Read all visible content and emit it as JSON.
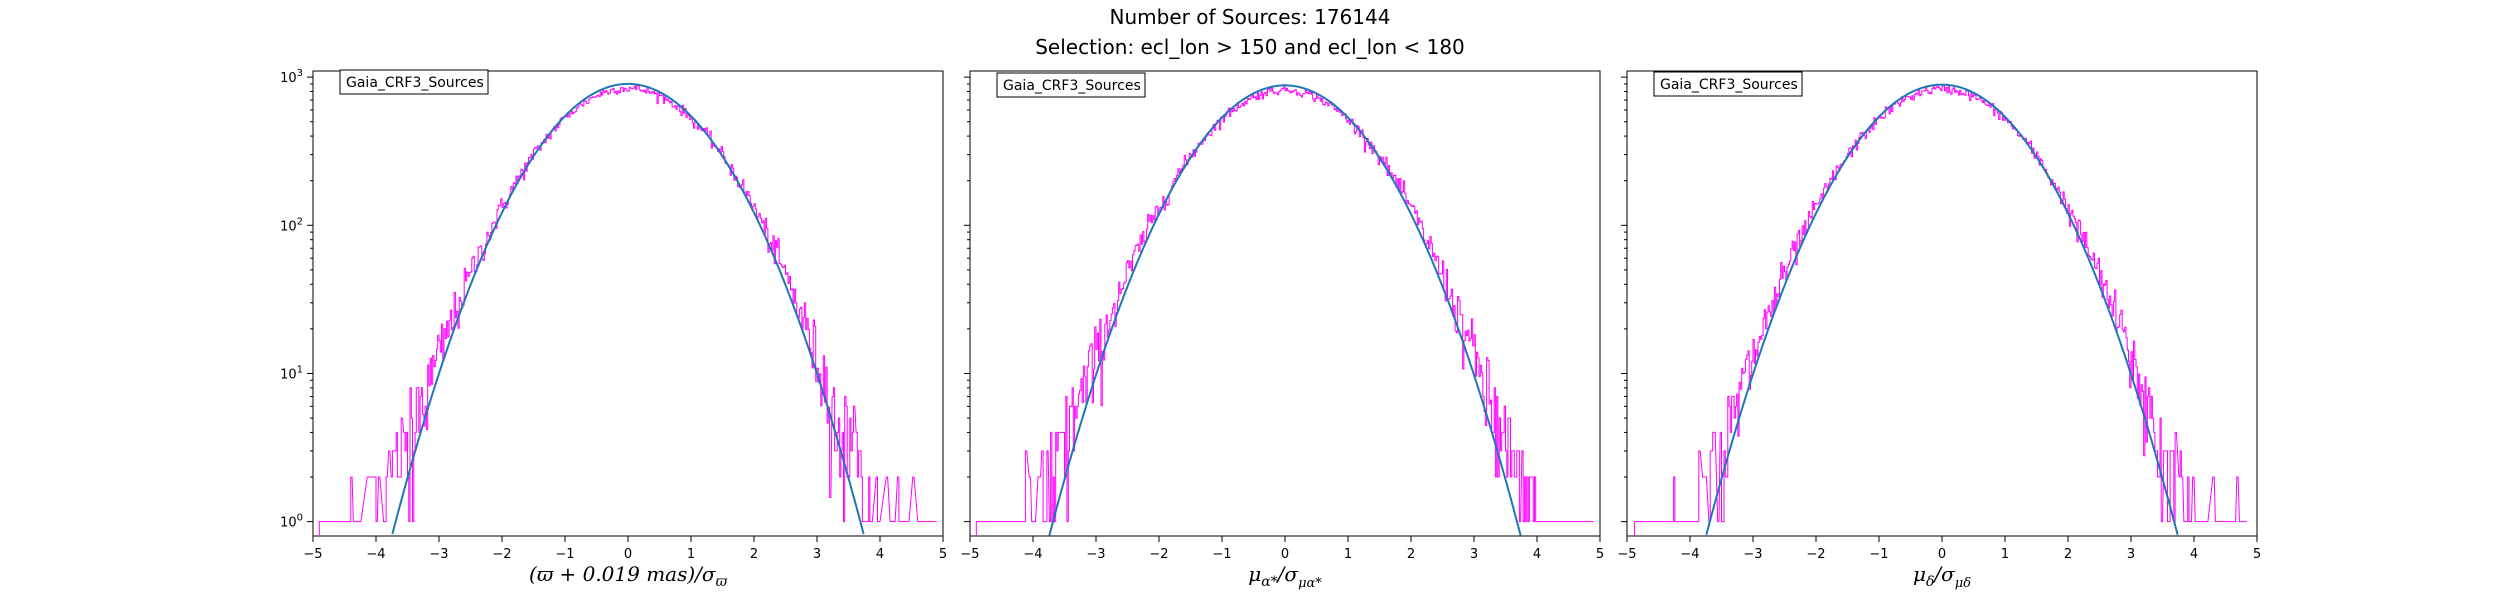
{
  "figure": {
    "title_line1": "Number of Sources: 176144",
    "title_line2": "Selection: ecl_lon > 150 and ecl_lon < 180"
  },
  "colors": {
    "histogram": "#ff00ff",
    "gaussian_fit": "#1f77b4",
    "axes": "#000000"
  },
  "chart_data": [
    {
      "type": "line",
      "legend": "Gaia_CRF3_Sources",
      "legend_position": "top-left",
      "xlabel": "(ϖ + 0.019 mas)/σϖ",
      "xlabel_parts": {
        "main": "(ϖ + 0.019 mas)/σ",
        "sub": "ϖ"
      },
      "xlim": [
        -5,
        5
      ],
      "x_ticks": [
        "−5",
        "−4",
        "−3",
        "−2",
        "−1",
        "0",
        "1",
        "2",
        "3",
        "4",
        "5"
      ],
      "yscale": "log",
      "ylim": [
        0.8,
        1100
      ],
      "y_ticks": [
        {
          "base": "10",
          "exp": "0",
          "value": 1
        },
        {
          "base": "10",
          "exp": "1",
          "value": 10
        },
        {
          "base": "10",
          "exp": "2",
          "value": 100
        },
        {
          "base": "10",
          "exp": "3",
          "value": 1000
        }
      ],
      "series": [
        {
          "kind": "step-histogram",
          "bin_width": 0.02,
          "peak": 840,
          "sigma": 1.04,
          "mean": 0.0,
          "x_range": [
            -4.9,
            4.9
          ],
          "min_count": 1
        },
        {
          "kind": "gaussian",
          "peak": 900,
          "sigma": 1.0,
          "mean": 0.0
        }
      ]
    },
    {
      "type": "line",
      "legend": "Gaia_CRF3_Sources",
      "legend_position": "top-left",
      "xlabel": "μα*/σμα*",
      "xlabel_parts": {
        "main": "μ",
        "sub1": "α*",
        "mid": "/σ",
        "sub2": "μα*"
      },
      "xlim": [
        -5,
        5
      ],
      "x_ticks": [
        "−5",
        "−4",
        "−3",
        "−2",
        "−1",
        "0",
        "1",
        "2",
        "3",
        "4",
        "5"
      ],
      "yscale": "log",
      "ylim": [
        0.8,
        1100
      ],
      "series": [
        {
          "kind": "step-histogram",
          "bin_width": 0.02,
          "peak": 820,
          "sigma": 1.045,
          "mean": 0.0,
          "x_range": [
            -4.9,
            4.9
          ],
          "min_count": 1
        },
        {
          "kind": "gaussian",
          "peak": 880,
          "sigma": 1.0,
          "mean": 0.0
        }
      ]
    },
    {
      "type": "line",
      "legend": "Gaia_CRF3_Sources",
      "legend_position": "top-left",
      "xlabel": "μδ/σμδ",
      "xlabel_parts": {
        "main": "μ",
        "sub1": "δ",
        "mid": "/σ",
        "sub2": "μδ"
      },
      "xlim": [
        -5,
        5
      ],
      "x_ticks": [
        "−5",
        "−4",
        "−3",
        "−2",
        "−1",
        "0",
        "1",
        "2",
        "3",
        "4",
        "5"
      ],
      "yscale": "log",
      "ylim": [
        0.8,
        1100
      ],
      "series": [
        {
          "kind": "step-histogram",
          "bin_width": 0.02,
          "peak": 830,
          "sigma": 1.04,
          "mean": 0.0,
          "x_range": [
            -4.9,
            4.9
          ],
          "min_count": 1
        },
        {
          "kind": "gaussian",
          "peak": 890,
          "sigma": 1.0,
          "mean": 0.0
        }
      ]
    }
  ]
}
